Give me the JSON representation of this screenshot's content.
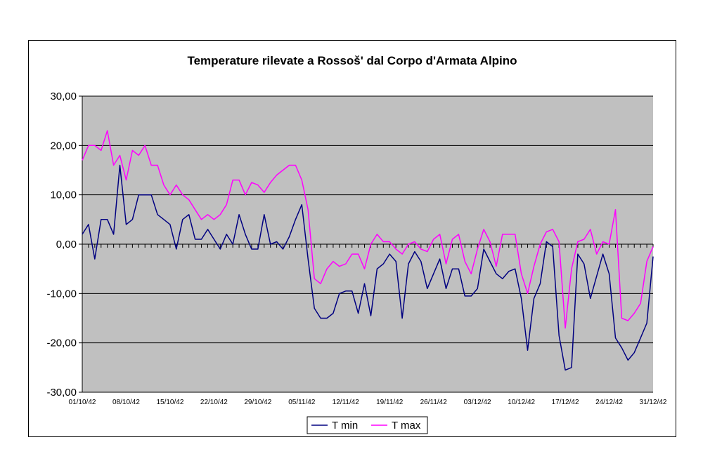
{
  "chart_data": {
    "type": "line",
    "title": "Temperature rilevate a Rossoš' dal Corpo d'Armata Alpino",
    "xlabel": "",
    "ylabel": "",
    "ylim": [
      -30,
      30
    ],
    "y_ticks": [
      "30,00",
      "20,00",
      "10,00",
      "0,00",
      "-10,00",
      "-20,00",
      "-30,00"
    ],
    "y_tick_values": [
      30,
      20,
      10,
      0,
      -10,
      -20,
      -30
    ],
    "x_tick_labels": [
      "01/10/42",
      "08/10/42",
      "15/10/42",
      "22/10/42",
      "29/10/42",
      "05/11/42",
      "12/11/42",
      "19/11/42",
      "26/11/42",
      "03/12/42",
      "10/12/42",
      "17/12/42",
      "24/12/42",
      "31/12/42"
    ],
    "x_tick_days": [
      0,
      7,
      14,
      21,
      28,
      35,
      42,
      49,
      56,
      63,
      70,
      77,
      84,
      91
    ],
    "grid": true,
    "plot_background": "#c0c0c0",
    "legend_position": "bottom",
    "series": [
      {
        "name": "T min",
        "color": "#000080",
        "values": [
          2,
          4,
          -3,
          5,
          5,
          2,
          16,
          4,
          5,
          10,
          10,
          10,
          6,
          5,
          4,
          -1,
          5,
          6,
          1,
          1,
          3,
          1,
          -1,
          2,
          0,
          6,
          2,
          -1,
          -1,
          6,
          0,
          0.5,
          -1,
          1.5,
          5,
          8,
          -3,
          -13,
          -15,
          -15,
          -14,
          -10,
          -9.5,
          -9.5,
          -14,
          -8,
          -14.5,
          -5,
          -4,
          -2,
          -3.5,
          -15,
          -4,
          -1.5,
          -3.5,
          -9,
          -6,
          -3,
          -9,
          -5,
          -5,
          -10.5,
          -10.5,
          -9,
          -1,
          -3.5,
          -6,
          -7,
          -5.5,
          -5,
          -11,
          -21.5,
          -11,
          -8,
          0.5,
          -0.5,
          -18.5,
          -25.5,
          -25,
          -2,
          -4,
          -11,
          -6.5,
          -2,
          -6,
          -19,
          -21,
          -23.5,
          -22,
          -19,
          -16,
          -2.5
        ]
      },
      {
        "name": "T max",
        "color": "#ff00ff",
        "values": [
          17,
          20,
          20,
          19,
          23,
          16,
          18,
          13,
          19,
          18,
          20,
          16,
          16,
          12,
          10,
          12,
          10,
          9,
          7,
          5,
          6,
          5,
          6,
          8,
          13,
          13,
          10,
          12.5,
          12,
          10.5,
          12.5,
          14,
          15,
          16,
          16,
          13,
          7,
          -7,
          -8,
          -5,
          -3.5,
          -4.5,
          -4,
          -2,
          -2,
          -5,
          0,
          2,
          0.5,
          0.5,
          -1,
          -2,
          0,
          0.5,
          -1,
          -1.5,
          1,
          2,
          -4,
          1,
          2,
          -3.5,
          -6,
          -1,
          3,
          0.5,
          -4.5,
          2,
          2,
          2,
          -6,
          -10,
          -4.5,
          0,
          2.5,
          3,
          0.5,
          -17,
          -5,
          0.5,
          1,
          3,
          -2,
          0.5,
          0,
          7,
          -15,
          -15.5,
          -14,
          -12,
          -3.5,
          -0.5
        ]
      }
    ]
  }
}
